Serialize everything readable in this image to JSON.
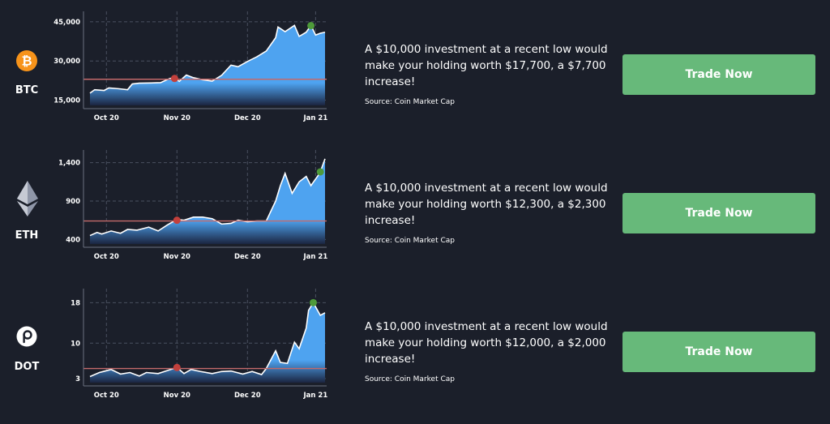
{
  "colors": {
    "background": "#1b1f2a",
    "area_top": "#4ea3f0",
    "area_line": "#ffffff",
    "baseline": "#c46a6a",
    "low_marker": "#c2403c",
    "high_marker": "#4e9a3a",
    "button": "#67b97a",
    "btc_orange": "#f7931a"
  },
  "rows": [
    {
      "ticker": "BTC",
      "icon": "bitcoin-icon",
      "info_text": "A $10,000 investment at a recent low would make your holding worth $17,700, a $7,700 increase!",
      "source": "Source: Coin Market Cap",
      "button_label": "Trade Now"
    },
    {
      "ticker": "ETH",
      "icon": "ethereum-icon",
      "info_text": "A $10,000 investment at a recent low would make your holding worth $12,300, a $2,300 increase!",
      "source": "Source: Coin Market Cap",
      "button_label": "Trade Now"
    },
    {
      "ticker": "DOT",
      "icon": "polkadot-icon",
      "info_text": "A $10,000 investment at a recent low would make your holding worth $12,000, a $2,000 increase!",
      "source": "Source: Coin Market Cap",
      "button_label": "Trade Now"
    }
  ],
  "chart_data": [
    {
      "type": "area",
      "asset": "BTC",
      "x_ticks": [
        "Oct 20",
        "Nov 20",
        "Dec 20",
        "Jan 21"
      ],
      "x_tick_positions": [
        7,
        37,
        67,
        96
      ],
      "y_ticks": [
        "15,000",
        "30,000",
        "45,000"
      ],
      "y_tick_values": [
        15000,
        30000,
        45000
      ],
      "ylim": [
        13000,
        46500
      ],
      "xlim": [
        0,
        100
      ],
      "grid": true,
      "baseline_value": 23000,
      "low_point": {
        "x": 36,
        "y": 23300
      },
      "high_point": {
        "x": 94,
        "y": 43500
      },
      "x": [
        0,
        2,
        6,
        8,
        12,
        16,
        18,
        21,
        26,
        30,
        34,
        36,
        38,
        41,
        44,
        48,
        52,
        56,
        60,
        63,
        67,
        71,
        75,
        79,
        80,
        83,
        87,
        89,
        92,
        94,
        96,
        98,
        100
      ],
      "values": [
        17700,
        19000,
        18700,
        19700,
        19400,
        19000,
        21200,
        21500,
        21600,
        21700,
        23300,
        23500,
        22200,
        24600,
        23600,
        22800,
        22300,
        24500,
        28400,
        27800,
        29800,
        31600,
        33800,
        38900,
        43000,
        41200,
        43600,
        39400,
        41000,
        43600,
        39900,
        40600,
        41000
      ]
    },
    {
      "type": "area",
      "asset": "ETH",
      "x_ticks": [
        "Oct 20",
        "Nov 20",
        "Dec 20",
        "Jan 21"
      ],
      "x_tick_positions": [
        7,
        37,
        67,
        96
      ],
      "y_ticks": [
        "400",
        "900",
        "1,400"
      ],
      "y_tick_values": [
        400,
        900,
        1400
      ],
      "ylim": [
        340,
        1480
      ],
      "xlim": [
        0,
        100
      ],
      "grid": true,
      "baseline_value": 640,
      "low_point": {
        "x": 37,
        "y": 650
      },
      "high_point": {
        "x": 98,
        "y": 1280
      },
      "x": [
        0,
        3,
        5,
        9,
        13,
        16,
        20,
        25,
        29,
        33,
        37,
        40,
        44,
        48,
        52,
        56,
        60,
        63,
        67,
        71,
        75,
        79,
        81,
        83,
        86,
        89,
        92,
        94,
        97,
        98,
        100
      ],
      "values": [
        450,
        490,
        470,
        510,
        480,
        530,
        520,
        560,
        510,
        590,
        660,
        650,
        690,
        690,
        670,
        600,
        610,
        650,
        630,
        640,
        640,
        900,
        1100,
        1260,
        1000,
        1150,
        1220,
        1100,
        1230,
        1280,
        1450
      ]
    },
    {
      "type": "area",
      "asset": "DOT",
      "x_ticks": [
        "Oct 20",
        "Nov 20",
        "Dec 20",
        "Jan 21"
      ],
      "x_tick_positions": [
        7,
        37,
        67,
        96
      ],
      "y_ticks": [
        "3",
        "10",
        "18"
      ],
      "y_tick_values": [
        3,
        10,
        18
      ],
      "ylim": [
        2.2,
        19.5
      ],
      "xlim": [
        0,
        100
      ],
      "grid": true,
      "baseline_value": 5.0,
      "low_point": {
        "x": 37,
        "y": 5.2
      },
      "high_point": {
        "x": 95,
        "y": 18.0
      },
      "x": [
        0,
        4,
        9,
        13,
        17,
        21,
        24,
        29,
        33,
        37,
        40,
        43,
        47,
        52,
        56,
        60,
        65,
        69,
        73,
        75,
        79,
        81,
        84,
        87,
        89,
        92,
        93,
        95,
        98,
        100
      ],
      "values": [
        3.4,
        4.2,
        4.8,
        3.9,
        4.2,
        3.5,
        4.2,
        4.0,
        4.6,
        5.2,
        4.0,
        4.8,
        4.4,
        4.0,
        4.4,
        4.5,
        3.9,
        4.4,
        3.8,
        5.0,
        8.5,
        6.2,
        6.0,
        10.2,
        8.9,
        13.0,
        16.5,
        18.0,
        15.5,
        16.0
      ]
    }
  ]
}
